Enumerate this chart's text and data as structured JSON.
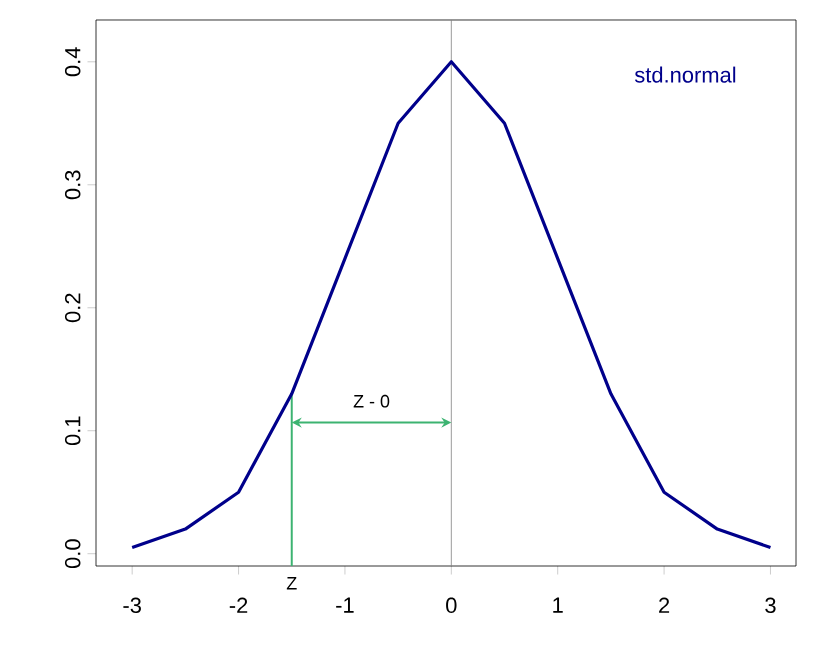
{
  "chart_data": {
    "type": "line",
    "x": [
      -3,
      -2.5,
      -2,
      -1.5,
      -1,
      -0.5,
      0,
      0.5,
      1,
      1.5,
      2,
      2.5,
      3
    ],
    "series": [
      {
        "name": "std.normal",
        "color": "#00008b",
        "values": [
          0.005,
          0.02,
          0.05,
          0.13,
          0.24,
          0.35,
          0.4,
          0.35,
          0.24,
          0.13,
          0.05,
          0.02,
          0.005
        ]
      }
    ],
    "ref_lines": [
      {
        "axis": "x",
        "value": 0,
        "color": "#808080"
      },
      {
        "axis": "x",
        "value": -1.5,
        "color": "#3cb371"
      }
    ],
    "annotations": [
      "Z - 0",
      "Z"
    ],
    "xlim": [
      -3.34,
      3.24
    ],
    "ylim": [
      -0.01,
      0.434
    ],
    "xticks": [
      -3,
      -2,
      -1,
      0,
      1,
      2,
      3
    ],
    "yticks": [
      {
        "value": 0,
        "label": "0.0"
      },
      {
        "value": 0.1,
        "label": "0.1"
      },
      {
        "value": 0.2,
        "label": "0.2"
      },
      {
        "value": 0.3,
        "label": "0.3"
      },
      {
        "value": 0.4,
        "label": "0.4"
      }
    ],
    "legend": "top right",
    "grid": false
  }
}
